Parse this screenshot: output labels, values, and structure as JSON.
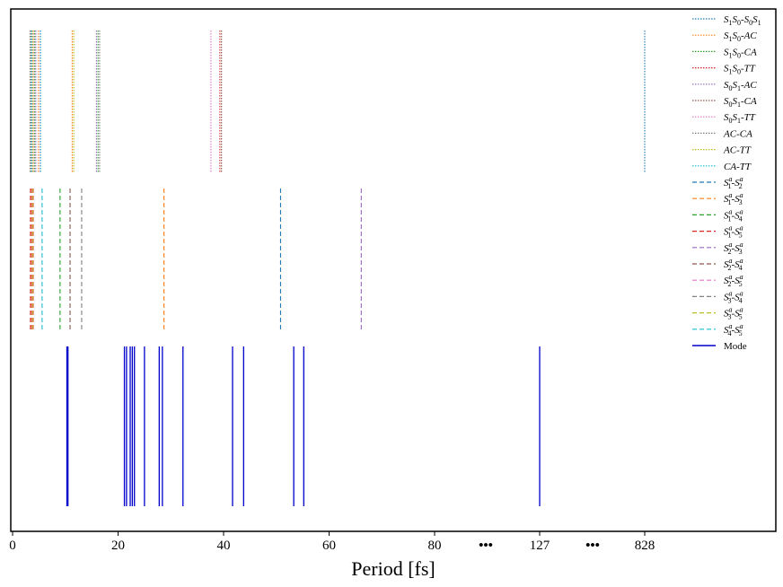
{
  "chart_data": {
    "type": "event-lines",
    "xlabel": "Period [fs]",
    "x_ticks": [
      "0",
      "20",
      "40",
      "60",
      "80",
      "127",
      "828"
    ],
    "x_break_marks": [
      "•••",
      "•••"
    ],
    "xlim": [
      0,
      140
    ],
    "axis_note": "linear 0–80 fs, then axis breaks; 127 and 828 shown after breaks",
    "legend_position": "top-right",
    "groups": [
      {
        "row": "top",
        "style": "dotted",
        "series": [
          {
            "name": "S1S0-S0S1",
            "label_html": "<tspan class='it'>S</tspan><tspan font-size='8' dy='3'>1</tspan><tspan class='it' dy='-3'>S</tspan><tspan font-size='8' dy='3'>0</tspan><tspan dy='-3'>-</tspan><tspan class='it'>S</tspan><tspan font-size='8' dy='3'>0</tspan><tspan class='it' dy='-3'>S</tspan><tspan font-size='8' dy='3'>1</tspan>",
            "color": "#1f77b4",
            "values": [
              3.7,
              828
            ]
          },
          {
            "name": "S1S0-AC",
            "label_html": "<tspan class='it'>S</tspan><tspan font-size='8' dy='3'>1</tspan><tspan class='it' dy='-3'>S</tspan><tspan font-size='8' dy='3'>0</tspan><tspan dy='-3'>-</tspan><tspan class='it'>AC</tspan>",
            "color": "#ff7f0e",
            "values": [
              4.9,
              11.3
            ]
          },
          {
            "name": "S1S0-CA",
            "label_html": "<tspan class='it'>S</tspan><tspan font-size='8' dy='3'>1</tspan><tspan class='it' dy='-3'>S</tspan><tspan font-size='8' dy='3'>0</tspan><tspan dy='-3'>-</tspan><tspan class='it'>CA</tspan>",
            "color": "#2ca02c",
            "values": [
              4.2,
              16.2
            ]
          },
          {
            "name": "S1S0-TT",
            "label_html": "<tspan class='it'>S</tspan><tspan font-size='8' dy='3'>1</tspan><tspan class='it' dy='-3'>S</tspan><tspan font-size='8' dy='3'>0</tspan><tspan dy='-3'>-</tspan><tspan class='it'>TT</tspan>",
            "color": "#d62728",
            "values": [
              3.9,
              39.3
            ]
          },
          {
            "name": "S0S1-AC",
            "label_html": "<tspan class='it'>S</tspan><tspan font-size='8' dy='3'>0</tspan><tspan class='it' dy='-3'>S</tspan><tspan font-size='8' dy='3'>1</tspan><tspan dy='-3'>-</tspan><tspan class='it'>AC</tspan>",
            "color": "#9467bd",
            "values": [
              4.4,
              15.9
            ]
          },
          {
            "name": "S0S1-CA",
            "label_html": "<tspan class='it'>S</tspan><tspan font-size='8' dy='3'>0</tspan><tspan class='it' dy='-3'>S</tspan><tspan font-size='8' dy='3'>1</tspan><tspan dy='-3'>-</tspan><tspan class='it'>CA</tspan>",
            "color": "#8c564b",
            "values": [
              3.5,
              39.6
            ]
          },
          {
            "name": "S0S1-TT",
            "label_html": "<tspan class='it'>S</tspan><tspan font-size='8' dy='3'>0</tspan><tspan class='it' dy='-3'>S</tspan><tspan font-size='8' dy='3'>1</tspan><tspan dy='-3'>-</tspan><tspan class='it'>TT</tspan>",
            "color": "#e377c2",
            "values": [
              5.2,
              37.6
            ]
          },
          {
            "name": "AC-CA",
            "label_html": "<tspan class='it'>AC</tspan><tspan>-</tspan><tspan class='it'>CA</tspan>",
            "color": "#7f7f7f",
            "values": [
              3.3,
              16.5
            ]
          },
          {
            "name": "AC-TT",
            "label_html": "<tspan class='it'>AC</tspan><tspan>-</tspan><tspan class='it'>TT</tspan>",
            "color": "#bcbd22",
            "values": [
              3.8,
              11.6
            ]
          },
          {
            "name": "CA-TT",
            "label_html": "<tspan class='it'>CA</tspan><tspan>-</tspan><tspan class='it'>TT</tspan>",
            "color": "#17becf",
            "values": [
              3.6,
              5.3
            ]
          }
        ]
      },
      {
        "row": "middle",
        "style": "dashed",
        "series": [
          {
            "name": "S1a-S2a",
            "label_html": "<tspan class='it'>S</tspan><tspan font-size='8' dy='-5' class='it'>a</tspan><tspan font-size='8' dx='-5' dy='8'>1</tspan><tspan dy='-3'>-</tspan><tspan class='it'>S</tspan><tspan font-size='8' dy='-5' class='it'>a</tspan><tspan font-size='8' dx='-5' dy='8'>2</tspan>",
            "color": "#1f77b4",
            "values": [
              50.8
            ]
          },
          {
            "name": "S1a-S3a",
            "label_html": "<tspan class='it'>S</tspan><tspan font-size='8' dy='-5' class='it'>a</tspan><tspan font-size='8' dx='-5' dy='8'>1</tspan><tspan dy='-3'>-</tspan><tspan class='it'>S</tspan><tspan font-size='8' dy='-5' class='it'>a</tspan><tspan font-size='8' dx='-5' dy='8'>3</tspan>",
            "color": "#ff7f0e",
            "values": [
              28.7,
              3.6
            ]
          },
          {
            "name": "S1a-S4a",
            "label_html": "<tspan class='it'>S</tspan><tspan font-size='8' dy='-5' class='it'>a</tspan><tspan font-size='8' dx='-5' dy='8'>1</tspan><tspan dy='-3'>-</tspan><tspan class='it'>S</tspan><tspan font-size='8' dy='-5' class='it'>a</tspan><tspan font-size='8' dx='-5' dy='8'>4</tspan>",
            "color": "#2ca02c",
            "values": [
              9.0
            ]
          },
          {
            "name": "S1a-S5a",
            "label_html": "<tspan class='it'>S</tspan><tspan font-size='8' dy='-5' class='it'>a</tspan><tspan font-size='8' dx='-5' dy='8'>1</tspan><tspan dy='-3'>-</tspan><tspan class='it'>S</tspan><tspan font-size='8' dy='-5' class='it'>a</tspan><tspan font-size='8' dx='-5' dy='8'>5</tspan>",
            "color": "#d62728",
            "values": [
              3.4,
              3.9
            ]
          },
          {
            "name": "S2a-S3a",
            "label_html": "<tspan class='it'>S</tspan><tspan font-size='8' dy='-5' class='it'>a</tspan><tspan font-size='8' dx='-5' dy='8'>2</tspan><tspan dy='-3'>-</tspan><tspan class='it'>S</tspan><tspan font-size='8' dy='-5' class='it'>a</tspan><tspan font-size='8' dx='-5' dy='8'>3</tspan>",
            "color": "#9467bd",
            "values": [
              66.1
            ]
          },
          {
            "name": "S2a-S4a",
            "label_html": "<tspan class='it'>S</tspan><tspan font-size='8' dy='-5' class='it'>a</tspan><tspan font-size='8' dx='-5' dy='8'>2</tspan><tspan dy='-3'>-</tspan><tspan class='it'>S</tspan><tspan font-size='8' dy='-5' class='it'>a</tspan><tspan font-size='8' dx='-5' dy='8'>4</tspan>",
            "color": "#8c564b",
            "values": [
              10.9
            ]
          },
          {
            "name": "S2a-S5a",
            "label_html": "<tspan class='it'>S</tspan><tspan font-size='8' dy='-5' class='it'>a</tspan><tspan font-size='8' dx='-5' dy='8'>2</tspan><tspan dy='-3'>-</tspan><tspan class='it'>S</tspan><tspan font-size='8' dy='-5' class='it'>a</tspan><tspan font-size='8' dx='-5' dy='8'>5</tspan>",
            "color": "#e377c2",
            "values": [
              3.7
            ]
          },
          {
            "name": "S3a-S4a",
            "label_html": "<tspan class='it'>S</tspan><tspan font-size='8' dy='-5' class='it'>a</tspan><tspan font-size='8' dx='-5' dy='8'>3</tspan><tspan dy='-3'>-</tspan><tspan class='it'>S</tspan><tspan font-size='8' dy='-5' class='it'>a</tspan><tspan font-size='8' dx='-5' dy='8'>4</tspan>",
            "color": "#7f7f7f",
            "values": [
              13.1
            ]
          },
          {
            "name": "S3a-S5a",
            "label_html": "<tspan class='it'>S</tspan><tspan font-size='8' dy='-5' class='it'>a</tspan><tspan font-size='8' dx='-5' dy='8'>3</tspan><tspan dy='-3'>-</tspan><tspan class='it'>S</tspan><tspan font-size='8' dy='-5' class='it'>a</tspan><tspan font-size='8' dx='-5' dy='8'>5</tspan>",
            "color": "#bcbd22",
            "values": [
              3.8
            ]
          },
          {
            "name": "S4a-S5a",
            "label_html": "<tspan class='it'>S</tspan><tspan font-size='8' dy='-5' class='it'>a</tspan><tspan font-size='8' dx='-5' dy='8'>4</tspan><tspan dy='-3'>-</tspan><tspan class='it'>S</tspan><tspan font-size='8' dy='-5' class='it'>a</tspan><tspan font-size='8' dx='-5' dy='8'>5</tspan>",
            "color": "#17becf",
            "values": [
              5.6
            ]
          }
        ]
      },
      {
        "row": "bottom",
        "style": "solid",
        "series": [
          {
            "name": "Mode",
            "label_html": "<tspan>Mode</tspan>",
            "color": "#0000cc",
            "values": [
              10.3,
              10.5,
              21.2,
              21.6,
              22.3,
              22.7,
              23.1,
              25.0,
              27.8,
              28.4,
              32.3,
              41.7,
              43.8,
              53.3,
              55.2,
              127
            ]
          }
        ]
      }
    ]
  }
}
